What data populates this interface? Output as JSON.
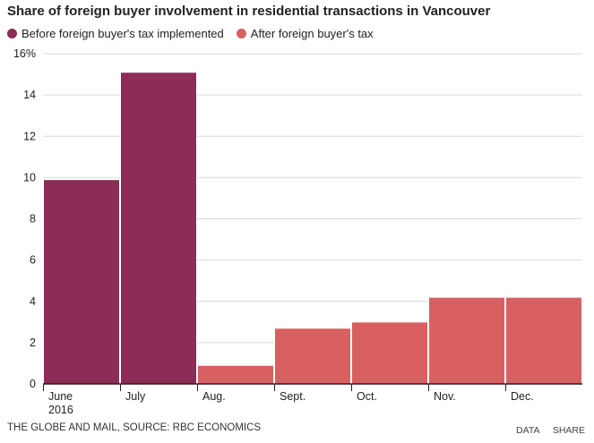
{
  "chart_data": {
    "type": "bar",
    "title": "Share of foreign buyer involvement in residential transactions in Vancouver",
    "categories": [
      "June\n2016",
      "July",
      "Aug.",
      "Sept.",
      "Oct.",
      "Nov.",
      "Dec."
    ],
    "values": [
      9.9,
      15.1,
      0.9,
      2.7,
      3.0,
      4.2,
      4.2
    ],
    "groups": [
      "before",
      "before",
      "after",
      "after",
      "after",
      "after",
      "after"
    ],
    "series": [
      {
        "name": "Before foreign buyer's tax implemented",
        "key": "before",
        "color": "#8b2d56"
      },
      {
        "name": "After foreign buyer's tax",
        "key": "after",
        "color": "#d96060"
      }
    ],
    "xlabel": "",
    "ylabel": "",
    "ylim": [
      0,
      16
    ],
    "yticks": [
      0,
      2,
      4,
      6,
      8,
      10,
      12,
      14,
      16
    ],
    "ytick_labels": [
      "0",
      "2",
      "4",
      "6",
      "8",
      "10",
      "12",
      "14",
      "16%"
    ],
    "grid": true,
    "legend_position": "top-left"
  },
  "footer": {
    "source": "THE GLOBE AND MAIL, SOURCE: RBC ECONOMICS",
    "data_link": "DATA",
    "share_link": "SHARE"
  },
  "colors": {
    "grid": "#d9d9d9",
    "axis": "#222222",
    "bar_border": "#ffffff"
  }
}
